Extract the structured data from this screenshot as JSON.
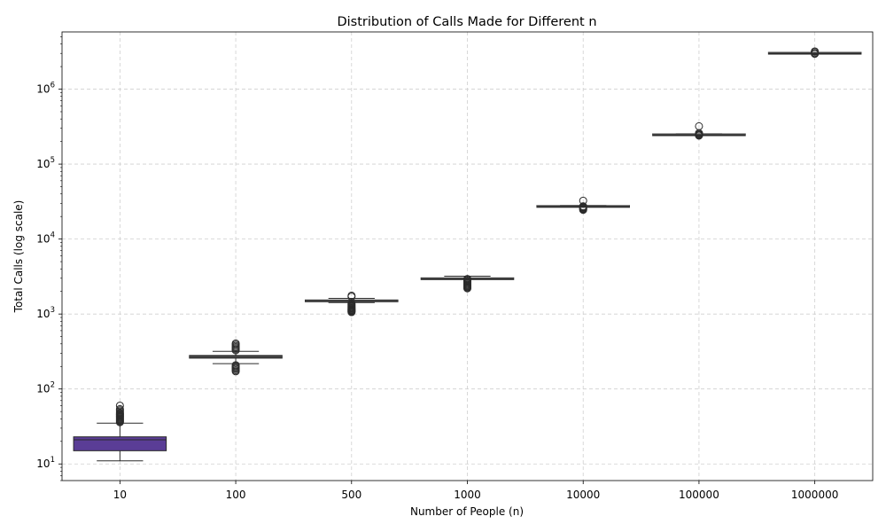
{
  "chart_data": {
    "type": "box",
    "title": "Distribution of Calls Made for Different n",
    "xlabel": "Number of People (n)",
    "ylabel": "Total Calls (log scale)",
    "yscale": "log",
    "ylim": [
      6,
      5800000
    ],
    "grid": true,
    "categories": [
      "10",
      "100",
      "500",
      "1000",
      "10000",
      "100000",
      "1000000"
    ],
    "y_ticks": [
      {
        "base": "10",
        "exp": "1",
        "value": 10
      },
      {
        "base": "10",
        "exp": "2",
        "value": 100
      },
      {
        "base": "10",
        "exp": "3",
        "value": 1000
      },
      {
        "base": "10",
        "exp": "4",
        "value": 10000
      },
      {
        "base": "10",
        "exp": "5",
        "value": 100000
      },
      {
        "base": "10",
        "exp": "6",
        "value": 1000000
      }
    ],
    "boxes": [
      {
        "category": "10",
        "whisker_low": 11,
        "q1": 15,
        "median": 21,
        "q3": 23,
        "whisker_high": 35,
        "outliers": [
          36,
          37,
          38,
          39,
          40,
          41,
          42,
          43,
          44,
          45,
          46,
          47,
          48,
          50,
          52,
          54,
          60
        ]
      },
      {
        "category": "100",
        "whisker_low": 218,
        "q1": 258,
        "median": 268,
        "q3": 280,
        "whisker_high": 318,
        "outliers": [
          172,
          178,
          185,
          190,
          196,
          202,
          208,
          328,
          338,
          350,
          362,
          375,
          390,
          405
        ]
      },
      {
        "category": "500",
        "whisker_low": 1420,
        "q1": 1475,
        "median": 1505,
        "q3": 1540,
        "whisker_high": 1620,
        "outliers": [
          1060,
          1080,
          1100,
          1120,
          1140,
          1160,
          1185,
          1210,
          1240,
          1270,
          1300,
          1340,
          1380,
          1700,
          1760
        ]
      },
      {
        "category": "1000",
        "whisker_low": 2980,
        "q1": 2990,
        "median": 3010,
        "q3": 3040,
        "whisker_high": 3200,
        "outliers": [
          2200,
          2250,
          2300,
          2360,
          2420,
          2480,
          2550,
          2620,
          2700,
          2780,
          2860,
          2940
        ]
      },
      {
        "category": "10000",
        "whisker_low": 27700,
        "q1": 27800,
        "median": 27900,
        "q3": 28000,
        "whisker_high": 28100,
        "outliers": [
          24500,
          25000,
          25500,
          26000,
          26500,
          27000,
          27400,
          32500
        ]
      },
      {
        "category": "100000",
        "whisker_low": 251000,
        "q1": 252000,
        "median": 252500,
        "q3": 253000,
        "whisker_high": 254000,
        "outliers": [
          240000,
          243000,
          246000,
          249000,
          256000,
          259000,
          320000
        ]
      },
      {
        "category": "1000000",
        "whisker_low": 3090000,
        "q1": 3092000,
        "median": 3094000,
        "q3": 3096000,
        "whisker_high": 3100000,
        "outliers": [
          2960000,
          3000000,
          3040000,
          3150000,
          3190000
        ]
      }
    ],
    "colors": {
      "box_first": "#5a3d96",
      "box_other": "#2b2b2b",
      "line": "#2b2b2b",
      "grid": "#cfcfcf",
      "axis": "#000000"
    }
  }
}
